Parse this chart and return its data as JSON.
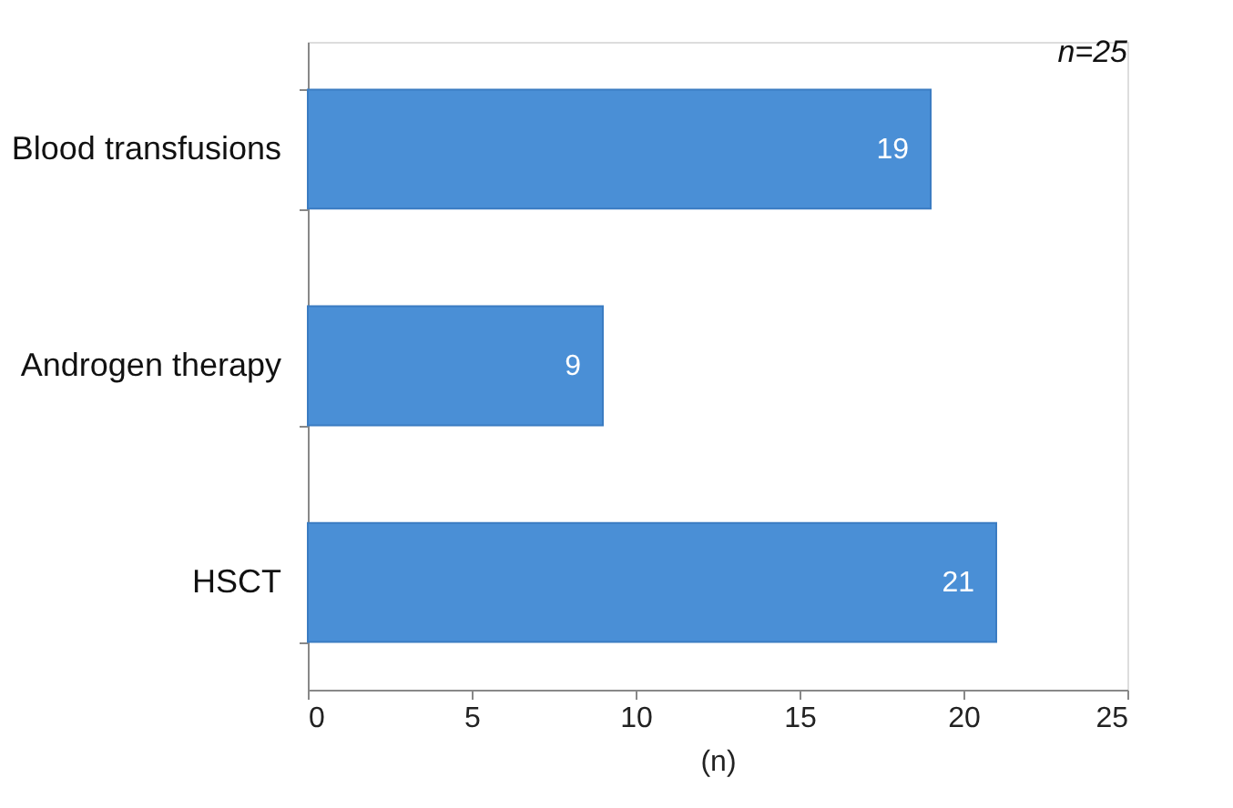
{
  "chart_data": {
    "type": "bar",
    "orientation": "horizontal",
    "categories": [
      "Blood transfusions",
      "Androgen therapy",
      "HSCT"
    ],
    "values": [
      19,
      9,
      21
    ],
    "color": "#4a8fd6",
    "xlim": [
      0,
      25
    ],
    "xticks": [
      0,
      5,
      10,
      15,
      20,
      25
    ],
    "xlabel": "(n)",
    "annotations": [
      "n=25"
    ],
    "data_labels": true,
    "grid": false
  }
}
